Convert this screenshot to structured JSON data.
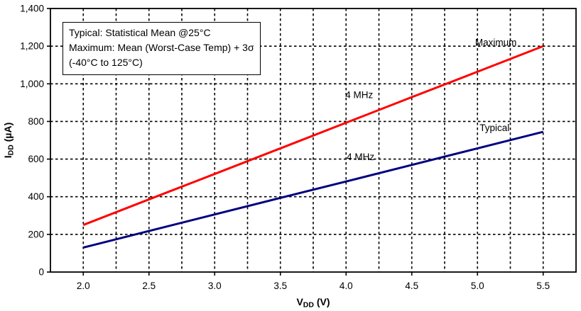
{
  "note": {
    "lines": [
      "Typical: Statistical Mean @25°C",
      "Maximum: Mean (Worst-Case Temp) + 3σ",
      "(-40°C to 125°C)"
    ]
  },
  "chart_data": {
    "type": "line",
    "title": "",
    "xlabel": "VDD (V)",
    "ylabel": "IDD (µA)",
    "xlabel_parts": {
      "pre": "V",
      "sub": "DD",
      "post": " (V)"
    },
    "ylabel_parts": {
      "pre": "I",
      "sub": "DD",
      "post": " (µA)"
    },
    "xlim": [
      1.75,
      5.75
    ],
    "ylim": [
      0,
      1400
    ],
    "x_minor_step": 0.25,
    "grid_style": "dashed",
    "grid_on": true,
    "legend_position": "inline-labels",
    "axis_color": "#000000",
    "background": "#ffffff",
    "x_ticks": [
      2.0,
      2.5,
      3.0,
      3.5,
      4.0,
      4.5,
      5.0,
      5.5
    ],
    "x_tick_labels": [
      "2.0",
      "2.5",
      "3.0",
      "3.5",
      "4.0",
      "4.5",
      "5.0",
      "5.5"
    ],
    "y_ticks": [
      0,
      200,
      400,
      600,
      800,
      1000,
      1200,
      1400
    ],
    "y_tick_labels": [
      "0",
      "200",
      "400",
      "600",
      "800",
      "1,000",
      "1,200",
      "1,400"
    ],
    "series": [
      {
        "name": "Maximum",
        "frequency": "4 MHz",
        "color": "#ff0000",
        "x": [
          2.0,
          2.5,
          3.0,
          3.5,
          4.0,
          4.5,
          5.0,
          5.5
        ],
        "values": [
          250,
          386,
          521,
          657,
          793,
          929,
          1064,
          1200
        ]
      },
      {
        "name": "Typical",
        "frequency": "4 MHz",
        "color": "#000080",
        "x": [
          2.0,
          2.5,
          3.0,
          3.5,
          4.0,
          4.5,
          5.0,
          5.5
        ],
        "values": [
          130,
          218,
          306,
          394,
          481,
          569,
          657,
          745
        ]
      }
    ],
    "annotations": [
      {
        "text": "Maximum",
        "x": 5.14,
        "y": 1220
      },
      {
        "text": "4 MHz",
        "x": 4.1,
        "y": 941
      },
      {
        "text": "Typical",
        "x": 5.13,
        "y": 765
      },
      {
        "text": "4 MHz",
        "x": 4.11,
        "y": 612
      }
    ]
  }
}
